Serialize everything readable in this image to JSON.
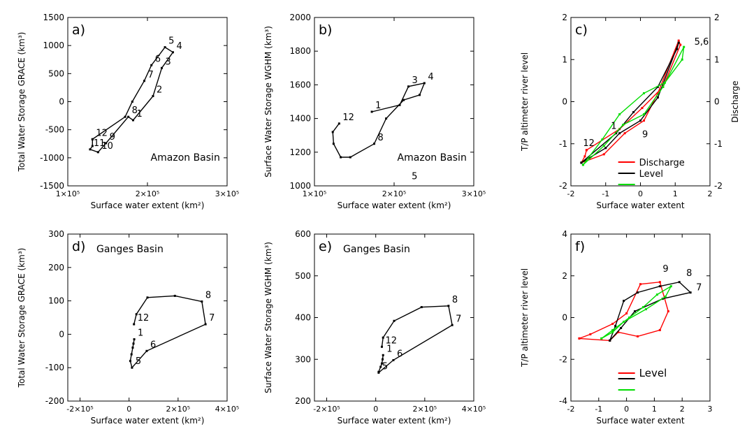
{
  "chart_data": [
    {
      "panel": "a",
      "type": "line",
      "panel_label": "a)",
      "title": "",
      "annotation": "Amazon Basin",
      "xlabel": "Surface water extent (km²)",
      "ylabel": "Total Water Storage GRACE (km³)",
      "xlim": [
        100000,
        300000
      ],
      "ylim": [
        -1500,
        1500
      ],
      "xticks": [
        100000,
        200000,
        300000
      ],
      "xtick_labels": [
        "1×10⁵",
        "2×10⁵",
        "3×10⁵"
      ],
      "yticks": [
        -1500,
        -1000,
        -500,
        0,
        500,
        1000,
        1500
      ],
      "ytick_labels": [
        "-1500",
        "-1000",
        "-500",
        "0",
        "500",
        "1000",
        "1500"
      ],
      "series": [
        {
          "color": "#000000",
          "closed": true,
          "x": [
            131000,
            131000,
            128000,
            138000,
            148000,
            176000,
            182000,
            207000,
            218000,
            232000,
            222000,
            205000,
            196000,
            181000,
            172000,
            131000
          ],
          "y": [
            -670,
            -790,
            -850,
            -900,
            -740,
            -270,
            -330,
            100,
            600,
            880,
            970,
            650,
            370,
            0,
            -270,
            -670
          ],
          "labels": [
            "12",
            "",
            "11",
            "10",
            "9",
            "8",
            "1",
            "2",
            "3",
            "4",
            "5",
            "6",
            "7",
            "",
            "",
            ""
          ]
        }
      ]
    },
    {
      "panel": "b",
      "type": "line",
      "panel_label": "b)",
      "title": "",
      "annotation": "Amazon Basin",
      "xlabel": "Surface water extent (km²)",
      "ylabel": "Surface Water Storage WGHM (km³)",
      "xlim": [
        100000,
        300000
      ],
      "ylim": [
        1000,
        2000
      ],
      "xticks": [
        100000,
        200000,
        300000
      ],
      "xtick_labels": [
        "1×10⁵",
        "2×10⁵",
        "3×10⁵"
      ],
      "yticks": [
        1000,
        1200,
        1400,
        1600,
        1800,
        2000
      ],
      "ytick_labels": [
        "1000",
        "1200",
        "1400",
        "1600",
        "1800",
        "2000"
      ],
      "extra_label": {
        "text": "5",
        "x": 222000,
        "y": 1040
      },
      "series": [
        {
          "color": "#000000",
          "closed": false,
          "x": [
            172000,
            207000,
            218000,
            238000,
            232000,
            212000,
            190000,
            175000,
            145000,
            133000,
            124000,
            123000,
            131000
          ],
          "y": [
            1440,
            1480,
            1590,
            1610,
            1540,
            1510,
            1400,
            1250,
            1170,
            1170,
            1250,
            1320,
            1370
          ],
          "labels": [
            "1",
            "",
            "3",
            "4",
            "",
            "",
            "",
            "8",
            "",
            "",
            "",
            "",
            "12"
          ]
        }
      ]
    },
    {
      "panel": "c",
      "type": "line",
      "panel_label": "c)",
      "title": "",
      "annotation": "",
      "xlabel": "Surface water extent",
      "ylabel": "T/P altimeter river level",
      "ylabel_right": "Discharge",
      "xlim": [
        -2,
        2
      ],
      "ylim": [
        -2,
        2
      ],
      "xticks": [
        -2,
        -1,
        0,
        1,
        2
      ],
      "xtick_labels": [
        "-2",
        "-1",
        "0",
        "1",
        "2"
      ],
      "yticks": [
        -2,
        -1,
        0,
        1,
        2
      ],
      "ytick_labels": [
        "-2",
        "-1",
        "0",
        "1",
        "2"
      ],
      "ytick_labels_right": [
        "-2",
        "-1",
        "0",
        "1",
        "2"
      ],
      "point_labels": [
        {
          "text": "12",
          "x": -1.65,
          "y": -1.05
        },
        {
          "text": "1",
          "x": -0.85,
          "y": -0.65
        },
        {
          "text": "9",
          "x": 0.05,
          "y": -0.85
        },
        {
          "text": "5,6",
          "x": 1.55,
          "y": 1.35
        }
      ],
      "legend": [
        {
          "text": "Discharge",
          "color": "#ff0000"
        },
        {
          "text": "Level",
          "color": "#000000"
        }
      ],
      "legend_extra_colors": [
        "#00dd00"
      ],
      "series": [
        {
          "color": "#ff0000",
          "closed": true,
          "x": [
            -1.55,
            -1.6,
            -1.7,
            -1.05,
            -0.45,
            0.1,
            0.5,
            1.1,
            1.15,
            0.65,
            0.05,
            -0.6,
            -1.55
          ],
          "y": [
            -1.15,
            -1.3,
            -1.45,
            -1.25,
            -0.75,
            -0.45,
            0.2,
            1.45,
            1.35,
            0.35,
            -0.15,
            -0.65,
            -1.15
          ]
        },
        {
          "color": "#000000",
          "closed": true,
          "x": [
            -1.7,
            -1.0,
            -0.6,
            0.0,
            0.5,
            1.1,
            1.05,
            0.5,
            -0.2,
            -0.7,
            -1.7
          ],
          "y": [
            -1.45,
            -1.1,
            -0.75,
            -0.45,
            0.1,
            1.4,
            1.25,
            0.35,
            -0.25,
            -0.75,
            -1.45
          ]
        },
        {
          "color": "#00dd00",
          "closed": true,
          "x": [
            -1.65,
            -1.05,
            -0.5,
            0.1,
            0.65,
            1.25,
            1.2,
            0.7,
            0.1,
            -0.6,
            -1.1,
            -1.65
          ],
          "y": [
            -1.5,
            -1.05,
            -0.55,
            -0.3,
            0.35,
            1.3,
            1.0,
            0.45,
            0.2,
            -0.3,
            -0.9,
            -1.5
          ]
        }
      ]
    },
    {
      "panel": "d",
      "type": "line",
      "panel_label": "d)",
      "title": "",
      "annotation": "Ganges Basin",
      "xlabel": "Surface water extent (km²)",
      "ylabel": "Total Water Storage GRACE (km³)",
      "xlim": [
        -250000,
        400000
      ],
      "ylim": [
        -200,
        300
      ],
      "xticks": [
        -200000,
        0,
        200000,
        400000
      ],
      "xtick_labels": [
        "-2×10⁵",
        "0",
        "2×10⁵",
        "4×10⁵"
      ],
      "yticks": [
        -200,
        -100,
        0,
        100,
        200,
        300
      ],
      "ytick_labels": [
        "-200",
        "-100",
        "0",
        "100",
        "200",
        "300"
      ],
      "series": [
        {
          "color": "#000000",
          "closed": false,
          "x": [
            21000,
            18000,
            15000,
            10000,
            5000,
            12000,
            72000,
            312000,
            297000,
            187000,
            75000,
            30000,
            20000
          ],
          "y": [
            -15,
            -28,
            -40,
            -60,
            -80,
            -100,
            -50,
            30,
            98,
            115,
            110,
            60,
            30
          ],
          "labels": [
            "1",
            "",
            "",
            "",
            "",
            "5",
            "6",
            "7",
            "8",
            "",
            "",
            "",
            "12"
          ]
        }
      ]
    },
    {
      "panel": "e",
      "type": "line",
      "panel_label": "e)",
      "title": "",
      "annotation": "Ganges Basin",
      "xlabel": "Surface water extent (km²)",
      "ylabel": "Surface Water Storage WGHM (km³)",
      "xlim": [
        -250000,
        400000
      ],
      "ylim": [
        200,
        600
      ],
      "xticks": [
        -200000,
        0,
        200000,
        400000
      ],
      "xtick_labels": [
        "-2×10⁵",
        "0",
        "2×10⁵",
        "4×10⁵"
      ],
      "yticks": [
        200,
        300,
        400,
        500,
        600
      ],
      "ytick_labels": [
        "200",
        "300",
        "400",
        "500",
        "600"
      ],
      "series": [
        {
          "color": "#000000",
          "closed": false,
          "x": [
            30000,
            28000,
            25000,
            20000,
            12000,
            12000,
            72000,
            312000,
            297000,
            187000,
            75000,
            30000,
            25000
          ],
          "y": [
            310,
            300,
            290,
            282,
            270,
            268,
            298,
            382,
            428,
            425,
            392,
            352,
            330
          ],
          "labels": [
            "1",
            "",
            "",
            "",
            "",
            "5",
            "6",
            "7",
            "8",
            "",
            "",
            "",
            "12"
          ]
        }
      ]
    },
    {
      "panel": "f",
      "type": "line",
      "panel_label": "f)",
      "title": "",
      "annotation": "",
      "xlabel": "Surface water extent",
      "ylabel": "T/P altimeter river level",
      "xlim": [
        -2,
        3
      ],
      "ylim": [
        -4,
        4
      ],
      "xticks": [
        -2,
        -1,
        0,
        1,
        2,
        3
      ],
      "xtick_labels": [
        "-2",
        "-1",
        "0",
        "1",
        "2",
        "3"
      ],
      "yticks": [
        -4,
        -2,
        0,
        2,
        4
      ],
      "ytick_labels": [
        "-4",
        "-2",
        "0",
        "2",
        "4"
      ],
      "point_labels": [
        {
          "text": "9",
          "x": 1.3,
          "y": 2.2,
          "color": "#ff0000"
        },
        {
          "text": "8",
          "x": 2.15,
          "y": 2.0
        },
        {
          "text": "7",
          "x": 2.5,
          "y": 1.3
        }
      ],
      "legend": [
        {
          "text": "Level",
          "color": "#ff0000"
        }
      ],
      "legend_extra_colors": [
        "#000000",
        "#00dd00"
      ],
      "series": [
        {
          "color": "#ff0000",
          "closed": true,
          "x": [
            -1.7,
            -1.3,
            -0.5,
            0.0,
            0.5,
            1.2,
            1.5,
            1.2,
            0.4,
            -0.3,
            -0.6,
            -1.7
          ],
          "y": [
            -1.0,
            -0.8,
            -0.3,
            0.2,
            1.6,
            1.7,
            0.3,
            -0.6,
            -0.9,
            -0.7,
            -1.1,
            -1.0
          ]
        },
        {
          "color": "#000000",
          "closed": true,
          "x": [
            -0.6,
            -0.4,
            -0.1,
            0.4,
            1.2,
            1.9,
            2.3,
            1.3,
            0.3,
            -0.2,
            -0.6
          ],
          "y": [
            -1.1,
            -0.4,
            0.8,
            1.2,
            1.5,
            1.7,
            1.2,
            0.9,
            0.3,
            -0.5,
            -1.1
          ]
        },
        {
          "color": "#00dd00",
          "closed": true,
          "x": [
            -0.9,
            -0.5,
            0.1,
            0.6,
            1.1,
            1.6,
            1.4,
            0.7,
            -0.1,
            -0.5,
            -0.9
          ],
          "y": [
            -1.0,
            -0.6,
            0.0,
            0.5,
            1.1,
            1.5,
            1.0,
            0.4,
            -0.2,
            -0.7,
            -1.0
          ]
        }
      ]
    }
  ]
}
